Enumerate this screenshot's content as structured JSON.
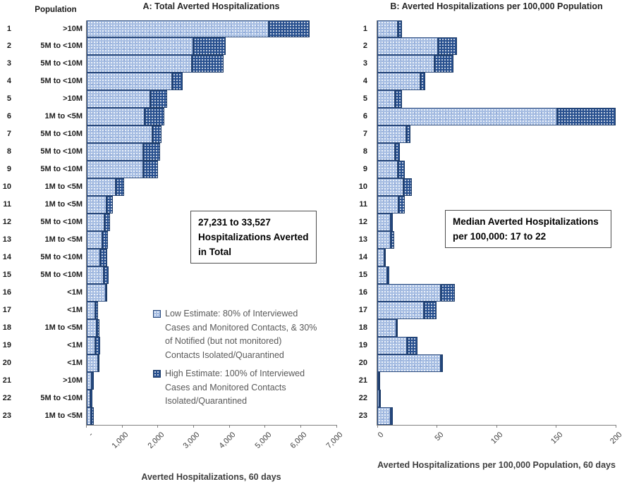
{
  "figure": {
    "background": "#ffffff",
    "colors": {
      "low_fill": "#a6bde2",
      "high_fill": "#28508f",
      "bar_border": "#27477a",
      "axis_line": "#808080",
      "tick_text": "#3f3f3f",
      "title_text": "#262626",
      "legend_text": "#595959",
      "annotation_text": "#000000",
      "annotation_border": "#4d4d4d"
    }
  },
  "chart_data": [
    {
      "id": "A",
      "type": "bar",
      "orientation": "horizontal",
      "stacked": true,
      "title": "A: Total Averted Hospitalizations",
      "xlabel": "Averted Hospitalizations, 60 days",
      "xlim": [
        0,
        7000
      ],
      "x_tick_values": [
        0,
        1000,
        2000,
        3000,
        4000,
        5000,
        6000,
        7000
      ],
      "x_tick_labels": [
        "-",
        "1,000",
        "2,000",
        "3,000",
        "4,000",
        "5,000",
        "6,000",
        "7,000"
      ],
      "row_header": "Population",
      "categories": [
        "1",
        "2",
        "3",
        "4",
        "5",
        "6",
        "7",
        "8",
        "9",
        "10",
        "11",
        "12",
        "13",
        "14",
        "15",
        "16",
        "17",
        "18",
        "19",
        "20",
        "21",
        "22",
        "23"
      ],
      "population_labels": [
        ">10M",
        "5M to <10M",
        "5M to <10M",
        "5M to <10M",
        ">10M",
        "1M to <5M",
        "5M to <10M",
        "5M to <10M",
        "5M to <10M",
        "1M to <5M",
        "1M to <5M",
        "5M to <10M",
        "1M to <5M",
        "5M to <10M",
        "5M to <10M",
        "<1M",
        "<1M",
        "1M to <5M",
        "<1M",
        "<1M",
        ">10M",
        "5M to <10M",
        "1M to <5M"
      ],
      "series": [
        {
          "key": "low",
          "name": "Low Estimate",
          "role": "light segment (0 to low)",
          "values": [
            5100,
            3000,
            2950,
            2400,
            1780,
            1630,
            1850,
            1590,
            1580,
            810,
            560,
            500,
            450,
            380,
            490,
            540,
            250,
            290,
            250,
            330,
            150,
            110,
            130
          ]
        },
        {
          "key": "high",
          "name": "High Estimate",
          "role": "dark segment (low to high total)",
          "values": [
            6250,
            3900,
            3850,
            2700,
            2270,
            2190,
            2100,
            2070,
            2000,
            1050,
            740,
            660,
            600,
            585,
            630,
            590,
            320,
            360,
            380,
            360,
            210,
            175,
            200
          ]
        }
      ],
      "annotation_lines": [
        "27,231 to 33,527",
        "Hospitalizations Averted",
        "in Total"
      ]
    },
    {
      "id": "B",
      "type": "bar",
      "orientation": "horizontal",
      "stacked": true,
      "title": "B: Averted Hospitalizations per 100,000 Population",
      "xlabel": "Averted Hospitalizations per 100,000 Population, 60 days",
      "xlim": [
        0,
        200
      ],
      "x_tick_values": [
        0,
        50,
        100,
        150,
        200
      ],
      "x_tick_labels": [
        "0",
        "50",
        "100",
        "150",
        "200"
      ],
      "categories": [
        "1",
        "2",
        "3",
        "4",
        "5",
        "6",
        "7",
        "8",
        "9",
        "10",
        "11",
        "12",
        "13",
        "14",
        "15",
        "16",
        "17",
        "18",
        "19",
        "20",
        "21",
        "22",
        "23"
      ],
      "series": [
        {
          "key": "low",
          "name": "Low Estimate",
          "role": "light segment (0 to low)",
          "values": [
            17,
            51,
            48,
            36,
            15,
            151,
            24,
            15,
            17,
            22,
            18,
            11,
            11,
            6,
            8,
            53,
            39,
            16,
            25,
            53,
            1,
            2,
            11
          ]
        },
        {
          "key": "high",
          "name": "High Estimate",
          "role": "dark segment (low to high total)",
          "values": [
            21,
            67,
            64,
            40,
            21,
            200,
            28,
            19,
            23,
            29,
            23,
            13,
            14,
            7,
            10,
            65,
            50,
            17,
            34,
            55,
            2,
            3,
            13
          ]
        }
      ],
      "annotation_lines": [
        "Median Averted Hospitalizations",
        "per 100,000: 17 to 22"
      ]
    }
  ],
  "legend": {
    "entries": [
      {
        "swatch": "low",
        "lines": [
          "Low Estimate: 80% of Interviewed",
          "Cases and Monitored Contacts, & 30%",
          "of Notified (but not monitored)",
          "Contacts Isolated/Quarantined"
        ]
      },
      {
        "swatch": "high",
        "lines": [
          "High Estimate: 100% of Interviewed",
          "Cases and Monitored Contacts",
          "Isolated/Quarantined"
        ]
      }
    ]
  }
}
